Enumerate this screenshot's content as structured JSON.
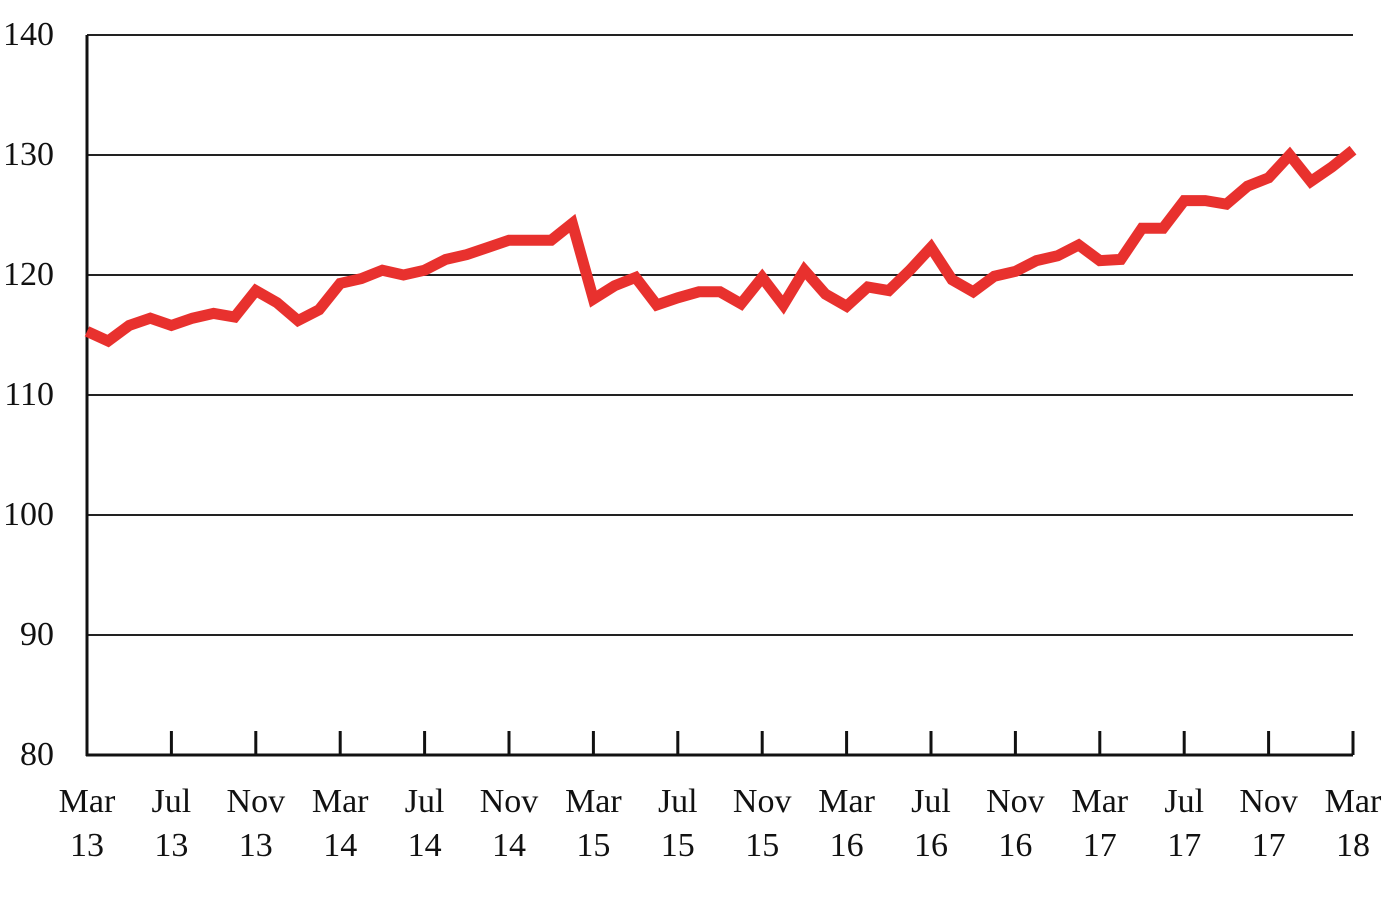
{
  "chart_data": {
    "type": "line",
    "title": "",
    "xlabel": "",
    "ylabel": "",
    "ylim": [
      80,
      140
    ],
    "yticks": [
      "80",
      "90",
      "100",
      "110",
      "120",
      "130",
      "140"
    ],
    "grid": true,
    "line_color": "#e8312e",
    "xticks": [
      {
        "month": 0,
        "top": "Mar",
        "bottom": "13"
      },
      {
        "month": 4,
        "top": "Jul",
        "bottom": "13"
      },
      {
        "month": 8,
        "top": "Nov",
        "bottom": "13"
      },
      {
        "month": 12,
        "top": "Mar",
        "bottom": "14"
      },
      {
        "month": 16,
        "top": "Jul",
        "bottom": "14"
      },
      {
        "month": 20,
        "top": "Nov",
        "bottom": "14"
      },
      {
        "month": 24,
        "top": "Mar",
        "bottom": "15"
      },
      {
        "month": 28,
        "top": "Jul",
        "bottom": "15"
      },
      {
        "month": 32,
        "top": "Nov",
        "bottom": "15"
      },
      {
        "month": 36,
        "top": "Mar",
        "bottom": "16"
      },
      {
        "month": 40,
        "top": "Jul",
        "bottom": "16"
      },
      {
        "month": 44,
        "top": "Nov",
        "bottom": "16"
      },
      {
        "month": 48,
        "top": "Mar",
        "bottom": "17"
      },
      {
        "month": 52,
        "top": "Jul",
        "bottom": "17"
      },
      {
        "month": 56,
        "top": "Nov",
        "bottom": "17"
      },
      {
        "month": 60,
        "top": "Mar",
        "bottom": "18"
      }
    ],
    "series": [
      {
        "values": [
          115.3,
          114.5,
          115.8,
          116.4,
          115.8,
          116.4,
          116.8,
          116.5,
          118.7,
          117.7,
          116.2,
          117.1,
          119.3,
          119.7,
          120.4,
          120.0,
          120.4,
          121.3,
          121.7,
          122.3,
          122.9,
          122.9,
          122.9,
          124.3,
          118.0,
          119.1,
          119.8,
          117.5,
          118.1,
          118.6,
          118.6,
          117.6,
          119.8,
          117.5,
          120.4,
          118.4,
          117.4,
          119.0,
          118.7,
          120.4,
          122.3,
          119.6,
          118.6,
          119.9,
          120.3,
          121.2,
          121.6,
          122.5,
          121.2,
          121.3,
          123.9,
          123.9,
          126.2,
          126.2,
          125.9,
          127.4,
          128.1,
          130.0,
          127.8,
          129.0,
          130.4
        ]
      }
    ]
  }
}
